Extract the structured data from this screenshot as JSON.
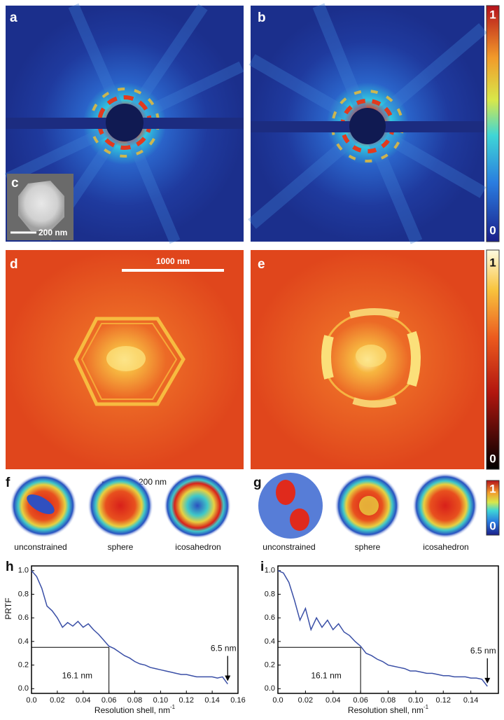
{
  "panel_labels": {
    "a": "a",
    "b": "b",
    "c": "c",
    "d": "d",
    "e": "e",
    "f": "f",
    "g": "g",
    "h": "h",
    "i": "i"
  },
  "scale_bars": {
    "c": "200 nm",
    "d": "1000 nm",
    "f": "200 nm"
  },
  "colorbars": [
    {
      "max": 1,
      "min": 0
    },
    {
      "max": 1,
      "min": 0
    },
    {
      "max": 1,
      "min": 0
    }
  ],
  "reconstruction_labels": {
    "f": [
      "unconstrained",
      "sphere",
      "icosahedron"
    ],
    "g": [
      "unconstrained",
      "sphere",
      "icosahedron"
    ]
  },
  "chart_data": [
    {
      "type": "line",
      "ylabel": "PRTF",
      "xlabel": "Resolution shell,  nm",
      "xlabel_sup": "-1",
      "x": [
        0,
        0.004,
        0.008,
        0.012,
        0.016,
        0.02,
        0.024,
        0.028,
        0.032,
        0.036,
        0.04,
        0.044,
        0.048,
        0.052,
        0.056,
        0.06,
        0.064,
        0.068,
        0.072,
        0.076,
        0.08,
        0.084,
        0.088,
        0.092,
        0.096,
        0.1,
        0.104,
        0.108,
        0.112,
        0.116,
        0.12,
        0.124,
        0.128,
        0.132,
        0.136,
        0.14,
        0.144,
        0.148,
        0.152
      ],
      "series": [
        {
          "color": "#3a4fa6",
          "values": [
            1.0,
            0.95,
            0.85,
            0.7,
            0.66,
            0.6,
            0.52,
            0.56,
            0.53,
            0.57,
            0.52,
            0.55,
            0.5,
            0.46,
            0.41,
            0.36,
            0.34,
            0.31,
            0.28,
            0.26,
            0.23,
            0.21,
            0.2,
            0.18,
            0.17,
            0.16,
            0.15,
            0.14,
            0.13,
            0.12,
            0.12,
            0.11,
            0.1,
            0.1,
            0.1,
            0.1,
            0.09,
            0.1,
            0.04
          ]
        }
      ],
      "xlim": [
        0,
        0.16
      ],
      "ylim": [
        -0.04,
        1.04
      ],
      "xticks": [
        {
          "value": 0,
          "label": "0.0"
        },
        0.02,
        0.04,
        0.06,
        0.08,
        {
          "value": 0.1,
          "label": "0.10"
        },
        0.12,
        0.14,
        0.16
      ],
      "yticks": [
        {
          "value": 0,
          "label": "0.0"
        },
        0.2,
        0.4,
        0.6,
        0.8,
        {
          "value": 1,
          "label": "1.0"
        }
      ],
      "reference": {
        "x": 0.06,
        "y": 0.35
      },
      "annotations": [
        "6.5 nm",
        "16.1 nm"
      ]
    },
    {
      "type": "line",
      "xlabel": "Resolution shell,  nm",
      "xlabel_sup": "-1",
      "x": [
        0,
        0.004,
        0.008,
        0.012,
        0.016,
        0.02,
        0.024,
        0.028,
        0.032,
        0.036,
        0.04,
        0.044,
        0.048,
        0.052,
        0.056,
        0.06,
        0.064,
        0.068,
        0.072,
        0.076,
        0.08,
        0.084,
        0.088,
        0.092,
        0.096,
        0.1,
        0.104,
        0.108,
        0.112,
        0.116,
        0.12,
        0.124,
        0.128,
        0.132,
        0.136,
        0.14,
        0.144,
        0.148,
        0.152
      ],
      "series": [
        {
          "color": "#3a4fa6",
          "values": [
            1.0,
            0.98,
            0.9,
            0.75,
            0.58,
            0.68,
            0.5,
            0.6,
            0.52,
            0.58,
            0.5,
            0.55,
            0.48,
            0.45,
            0.4,
            0.36,
            0.3,
            0.28,
            0.25,
            0.23,
            0.2,
            0.19,
            0.18,
            0.17,
            0.15,
            0.15,
            0.14,
            0.13,
            0.13,
            0.12,
            0.11,
            0.11,
            0.1,
            0.1,
            0.1,
            0.09,
            0.09,
            0.08,
            0.02
          ]
        }
      ],
      "xlim": [
        0,
        0.16
      ],
      "ylim": [
        -0.04,
        1.04
      ],
      "xticks": [
        {
          "value": 0,
          "label": "0.0"
        },
        0.02,
        0.04,
        0.06,
        0.08,
        {
          "value": 0.1,
          "label": "0.10"
        },
        0.12,
        0.14
      ],
      "yticks": [
        {
          "value": 0,
          "label": "0.0"
        },
        0.2,
        0.4,
        0.6,
        0.8,
        {
          "value": 1,
          "label": "1.0"
        }
      ],
      "reference": {
        "x": 0.06,
        "y": 0.35
      },
      "annotations": [
        "6.5 nm",
        "16.1 nm"
      ]
    }
  ]
}
